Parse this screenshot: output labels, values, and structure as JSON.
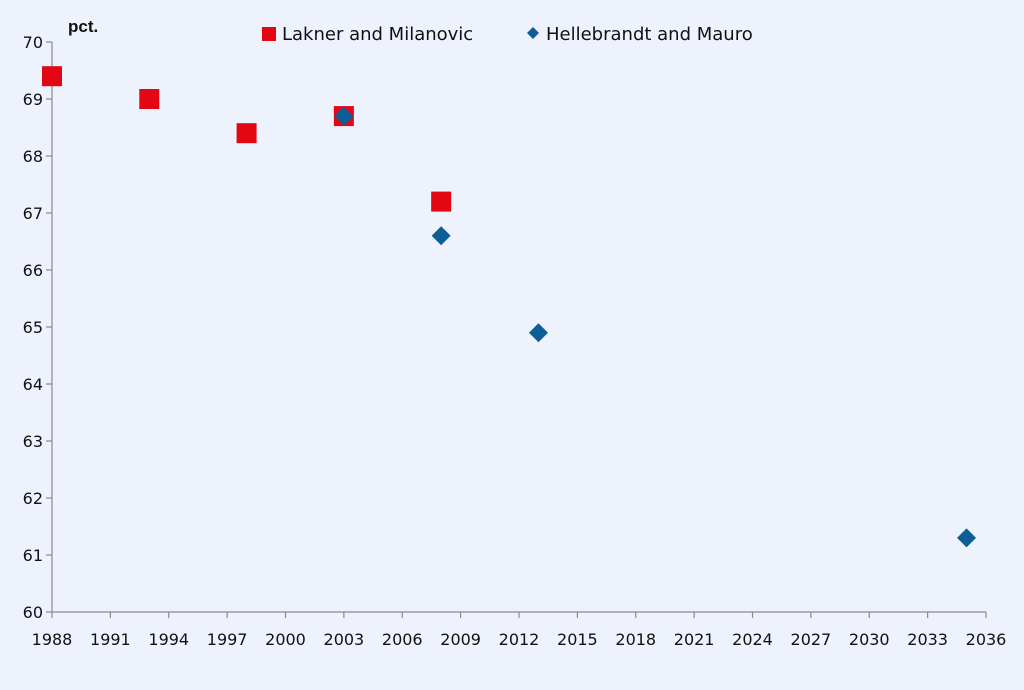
{
  "chart_data": {
    "type": "scatter",
    "ylabel": "pct.",
    "xlim": [
      1988,
      2036
    ],
    "ylim": [
      60,
      70
    ],
    "x_ticks": [
      1988,
      1991,
      1994,
      1997,
      2000,
      2003,
      2006,
      2009,
      2012,
      2015,
      2018,
      2021,
      2024,
      2027,
      2030,
      2033,
      2036
    ],
    "y_ticks": [
      60,
      61,
      62,
      63,
      64,
      65,
      66,
      67,
      68,
      69,
      70
    ],
    "grid": false,
    "legend_position": "top",
    "series": [
      {
        "name": "Lakner and Milanovic",
        "marker": "square",
        "color": "#e30613",
        "x": [
          1988,
          1993,
          1998,
          2003,
          2008
        ],
        "y": [
          69.4,
          69.0,
          68.4,
          68.7,
          67.2
        ]
      },
      {
        "name": "Hellebrandt and Mauro",
        "marker": "diamond",
        "color": "#0d5e96",
        "x": [
          2003,
          2008,
          2013,
          2035
        ],
        "y": [
          68.7,
          66.6,
          64.9,
          61.3
        ]
      }
    ]
  }
}
